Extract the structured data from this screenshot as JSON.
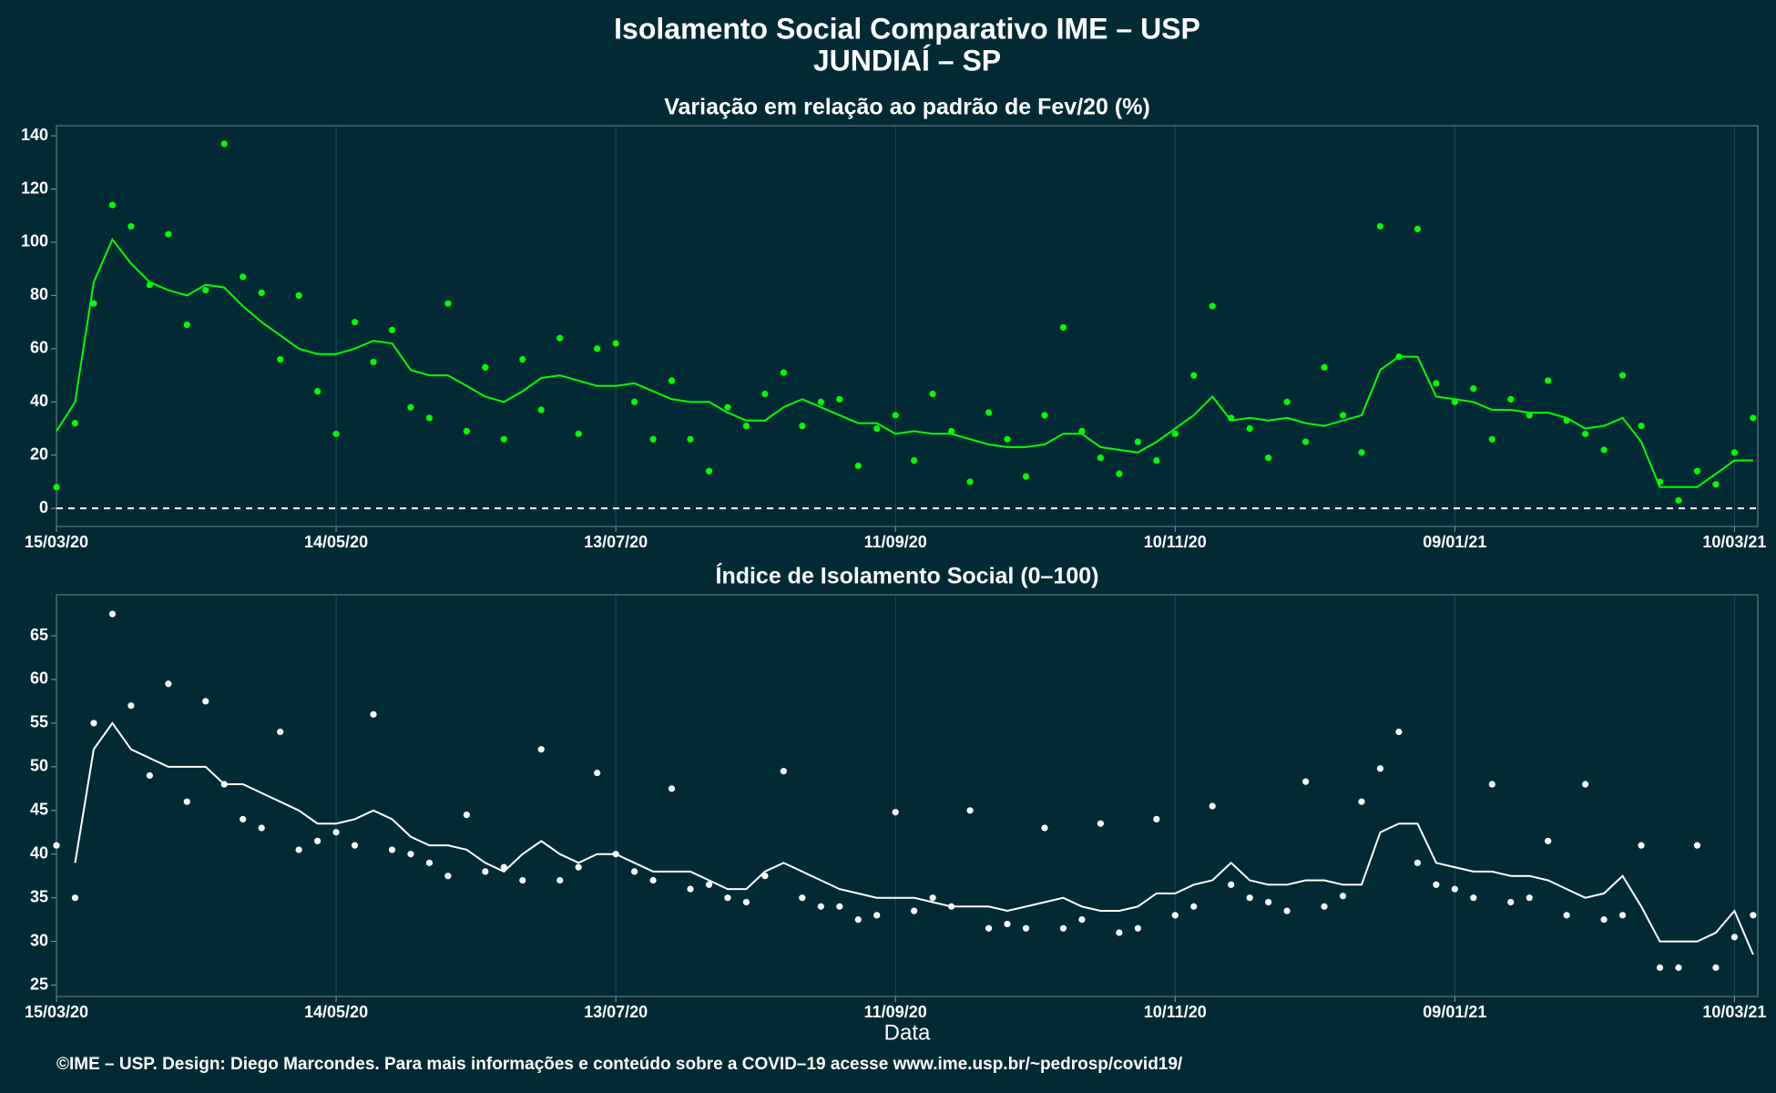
{
  "title": "Isolamento Social Comparativo IME – USP",
  "subtitle": "JUNDIAÍ – SP",
  "footer": "©IME – USP. Design: Diego Marcondes. Para mais informações e conteúdo sobre a COVID–19 acesse www.ime.usp.br/~pedrosp/covid19/",
  "chart_data": [
    {
      "type": "scatter",
      "title": "Variação em relação ao padrão de Fev/20 (%)",
      "x": [
        "15/03/20",
        "19/03/20",
        "23/03/20",
        "27/03/20",
        "31/03/20",
        "04/04/20",
        "08/04/20",
        "12/04/20",
        "16/04/20",
        "20/04/20",
        "24/04/20",
        "28/04/20",
        "02/05/20",
        "06/05/20",
        "10/05/20",
        "14/05/20",
        "18/05/20",
        "22/05/20",
        "26/05/20",
        "30/05/20",
        "03/06/20",
        "07/06/20",
        "11/06/20",
        "15/06/20",
        "19/06/20",
        "23/06/20",
        "27/06/20",
        "01/07/20",
        "05/07/20",
        "09/07/20",
        "13/07/20",
        "17/07/20",
        "21/07/20",
        "25/07/20",
        "29/07/20",
        "02/08/20",
        "06/08/20",
        "10/08/20",
        "14/08/20",
        "18/08/20",
        "22/08/20",
        "26/08/20",
        "30/08/20",
        "03/09/20",
        "07/09/20",
        "11/09/20",
        "15/09/20",
        "19/09/20",
        "23/09/20",
        "27/09/20",
        "01/10/20",
        "05/10/20",
        "09/10/20",
        "13/10/20",
        "17/10/20",
        "21/10/20",
        "25/10/20",
        "29/10/20",
        "02/11/20",
        "06/11/20",
        "10/11/20",
        "14/11/20",
        "18/11/20",
        "22/11/20",
        "26/11/20",
        "30/11/20",
        "04/12/20",
        "08/12/20",
        "12/12/20",
        "16/12/20",
        "20/12/20",
        "24/12/20",
        "28/12/20",
        "01/01/21",
        "05/01/21",
        "09/01/21",
        "13/01/21",
        "17/01/21",
        "21/01/21",
        "25/01/21",
        "29/01/21",
        "02/02/21",
        "06/02/21",
        "10/02/21",
        "14/02/21",
        "18/02/21",
        "22/02/21",
        "26/02/21",
        "02/03/21",
        "06/03/21",
        "10/03/21",
        "14/03/21"
      ],
      "series": [
        {
          "style": "points",
          "color": "#00ff00",
          "values": [
            8,
            32,
            77,
            114,
            106,
            84,
            103,
            69,
            82,
            137,
            87,
            81,
            56,
            80,
            44,
            28,
            70,
            55,
            67,
            38,
            34,
            77,
            29,
            53,
            26,
            56,
            37,
            64,
            28,
            60,
            62,
            40,
            26,
            48,
            26,
            14,
            38,
            31,
            43,
            51,
            31,
            40,
            41,
            16,
            30,
            35,
            18,
            43,
            29,
            10,
            36,
            26,
            12,
            35,
            68,
            29,
            19,
            13,
            25,
            18,
            28,
            50,
            76,
            34,
            30,
            19,
            40,
            25,
            53,
            35,
            21,
            106,
            57,
            105,
            47,
            40,
            45,
            26,
            41,
            35,
            48,
            33,
            28,
            22,
            50,
            31,
            10,
            3,
            14,
            9,
            21,
            34
          ]
        },
        {
          "style": "line",
          "color": "#00ff00",
          "values": [
            29,
            40,
            85,
            101,
            92,
            85,
            82,
            80,
            84,
            83,
            76,
            70,
            65,
            60,
            58,
            58,
            60,
            63,
            62,
            52,
            50,
            50,
            46,
            42,
            40,
            44,
            49,
            50,
            48,
            46,
            46,
            47,
            44,
            41,
            40,
            40,
            36,
            33,
            33,
            38,
            41,
            38,
            35,
            32,
            32,
            28,
            29,
            28,
            28,
            26,
            24,
            23,
            23,
            24,
            28,
            28,
            23,
            22,
            21,
            25,
            30,
            35,
            42,
            33,
            34,
            33,
            34,
            32,
            31,
            33,
            35,
            52,
            57,
            57,
            42,
            41,
            40,
            37,
            37,
            36,
            36,
            34,
            30,
            31,
            34,
            25,
            8,
            8,
            8,
            13,
            18,
            18
          ]
        }
      ],
      "xlim": [
        "15/03/20",
        "15/03/21"
      ],
      "xticks": [
        "15/03/20",
        "14/05/20",
        "13/07/20",
        "11/09/20",
        "10/11/20",
        "09/01/21",
        "10/03/21"
      ],
      "ylim": [
        -6.8,
        143.8
      ],
      "yticks": [
        0,
        20,
        40,
        60,
        80,
        100,
        120,
        140
      ],
      "hline": 0,
      "xgrid": true
    },
    {
      "type": "scatter",
      "title": "Índice de Isolamento Social (0–100)",
      "xlabel": "Data",
      "x": [
        "15/03/20",
        "19/03/20",
        "23/03/20",
        "27/03/20",
        "31/03/20",
        "04/04/20",
        "08/04/20",
        "12/04/20",
        "16/04/20",
        "20/04/20",
        "24/04/20",
        "28/04/20",
        "02/05/20",
        "06/05/20",
        "10/05/20",
        "14/05/20",
        "18/05/20",
        "22/05/20",
        "26/05/20",
        "30/05/20",
        "03/06/20",
        "07/06/20",
        "11/06/20",
        "15/06/20",
        "19/06/20",
        "23/06/20",
        "27/06/20",
        "01/07/20",
        "05/07/20",
        "09/07/20",
        "13/07/20",
        "17/07/20",
        "21/07/20",
        "25/07/20",
        "29/07/20",
        "02/08/20",
        "06/08/20",
        "10/08/20",
        "14/08/20",
        "18/08/20",
        "22/08/20",
        "26/08/20",
        "30/08/20",
        "03/09/20",
        "07/09/20",
        "11/09/20",
        "15/09/20",
        "19/09/20",
        "23/09/20",
        "27/09/20",
        "01/10/20",
        "05/10/20",
        "09/10/20",
        "13/10/20",
        "17/10/20",
        "21/10/20",
        "25/10/20",
        "29/10/20",
        "02/11/20",
        "06/11/20",
        "10/11/20",
        "14/11/20",
        "18/11/20",
        "22/11/20",
        "26/11/20",
        "30/11/20",
        "04/12/20",
        "08/12/20",
        "12/12/20",
        "16/12/20",
        "20/12/20",
        "24/12/20",
        "28/12/20",
        "01/01/21",
        "05/01/21",
        "09/01/21",
        "13/01/21",
        "17/01/21",
        "21/01/21",
        "25/01/21",
        "29/01/21",
        "02/02/21",
        "06/02/21",
        "10/02/21",
        "14/02/21",
        "18/02/21",
        "22/02/21",
        "26/02/21",
        "02/03/21",
        "06/03/21",
        "10/03/21",
        "14/03/21"
      ],
      "series": [
        {
          "style": "points",
          "color": "#ffffff",
          "values": [
            41,
            35,
            55,
            67.5,
            57,
            49,
            59.5,
            46,
            57.5,
            48,
            44,
            43,
            54,
            40.5,
            41.5,
            42.5,
            41,
            56,
            40.5,
            40,
            39,
            37.5,
            44.5,
            38,
            38.5,
            37,
            52,
            37,
            38.5,
            49.3,
            40,
            38,
            37,
            47.5,
            36,
            36.5,
            35,
            34.5,
            37.5,
            49.5,
            35,
            34,
            34,
            32.5,
            33,
            44.8,
            33.5,
            35,
            34,
            45,
            31.5,
            32,
            31.5,
            43,
            31.5,
            32.5,
            43.5,
            31,
            31.5,
            44,
            33,
            34,
            45.5,
            36.5,
            35,
            34.5,
            33.5,
            48.3,
            34,
            35.2,
            46,
            49.8,
            54,
            39,
            36.5,
            36,
            35,
            48,
            34.5,
            35,
            41.5,
            33,
            48,
            32.5,
            33,
            41,
            27,
            27,
            41,
            27,
            30.5,
            33
          ]
        },
        {
          "style": "line",
          "color": "#ffffff",
          "values": [
            null,
            39,
            52,
            55,
            52,
            51,
            50,
            50,
            50,
            48,
            48,
            47,
            46,
            45,
            43.5,
            43.5,
            44,
            45,
            44,
            42,
            41,
            41,
            40.5,
            39,
            38,
            40,
            41.5,
            40,
            39,
            40,
            40,
            39,
            38,
            38,
            38,
            37,
            36,
            36,
            38,
            39,
            38,
            37,
            36,
            35.5,
            35,
            35,
            35,
            34.5,
            34,
            34,
            34,
            33.5,
            34,
            34.5,
            35,
            34,
            33.5,
            33.5,
            34,
            35.5,
            35.5,
            36.5,
            37,
            39,
            37,
            36.5,
            36.5,
            37,
            37,
            36.5,
            36.5,
            42.5,
            43.5,
            43.5,
            39,
            38.5,
            38,
            38,
            37.5,
            37.5,
            37,
            36,
            35,
            35.5,
            37.5,
            34,
            30,
            30,
            30,
            31,
            33.5,
            28.5
          ]
        }
      ],
      "xlim": [
        "15/03/20",
        "15/03/21"
      ],
      "xticks": [
        "15/03/20",
        "14/05/20",
        "13/07/20",
        "11/09/20",
        "10/11/20",
        "09/01/21",
        "10/03/21"
      ],
      "ylim": [
        23.7,
        69.7
      ],
      "yticks": [
        25,
        30,
        35,
        40,
        45,
        50,
        55,
        60,
        65
      ],
      "xgrid": true
    }
  ]
}
